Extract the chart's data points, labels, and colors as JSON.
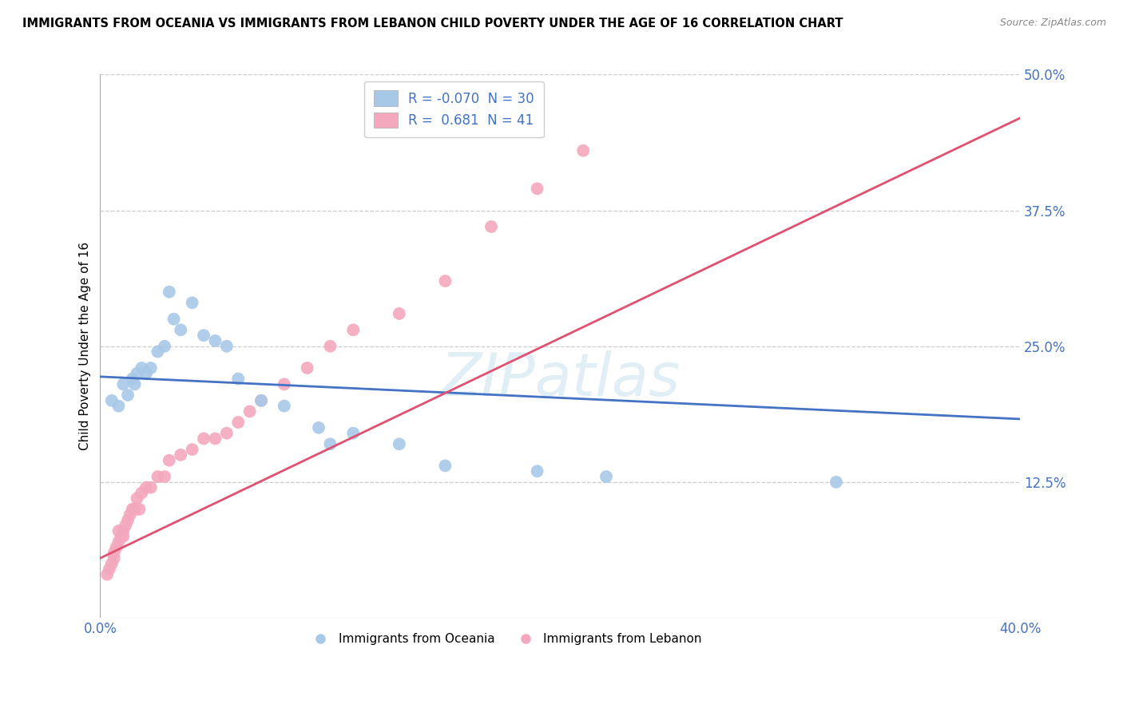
{
  "title": "IMMIGRANTS FROM OCEANIA VS IMMIGRANTS FROM LEBANON CHILD POVERTY UNDER THE AGE OF 16 CORRELATION CHART",
  "source": "Source: ZipAtlas.com",
  "ylabel": "Child Poverty Under the Age of 16",
  "xlim": [
    0.0,
    0.4
  ],
  "ylim": [
    0.0,
    0.5
  ],
  "xticks": [
    0.0,
    0.1,
    0.2,
    0.3,
    0.4
  ],
  "yticks": [
    0.0,
    0.125,
    0.25,
    0.375,
    0.5
  ],
  "oceania_R": "-0.070",
  "oceania_N": "30",
  "lebanon_R": "0.681",
  "lebanon_N": "41",
  "oceania_color": "#a8c8e8",
  "lebanon_color": "#f4a8be",
  "oceania_line_color": "#4472c4",
  "lebanon_line_color": "#e05070",
  "watermark_text": "ZIPatlas",
  "oceania_x": [
    0.005,
    0.008,
    0.01,
    0.012,
    0.014,
    0.015,
    0.016,
    0.018,
    0.02,
    0.022,
    0.025,
    0.028,
    0.03,
    0.032,
    0.035,
    0.04,
    0.045,
    0.05,
    0.055,
    0.06,
    0.07,
    0.08,
    0.095,
    0.1,
    0.11,
    0.13,
    0.15,
    0.19,
    0.22,
    0.32
  ],
  "oceania_y": [
    0.2,
    0.195,
    0.215,
    0.205,
    0.22,
    0.215,
    0.225,
    0.23,
    0.225,
    0.23,
    0.245,
    0.25,
    0.3,
    0.275,
    0.265,
    0.29,
    0.26,
    0.255,
    0.25,
    0.22,
    0.2,
    0.195,
    0.175,
    0.16,
    0.17,
    0.16,
    0.14,
    0.135,
    0.13,
    0.125
  ],
  "lebanon_x": [
    0.003,
    0.004,
    0.005,
    0.006,
    0.006,
    0.007,
    0.008,
    0.008,
    0.009,
    0.01,
    0.01,
    0.011,
    0.012,
    0.013,
    0.014,
    0.015,
    0.016,
    0.017,
    0.018,
    0.02,
    0.022,
    0.025,
    0.028,
    0.03,
    0.035,
    0.04,
    0.045,
    0.05,
    0.055,
    0.06,
    0.065,
    0.07,
    0.08,
    0.09,
    0.1,
    0.11,
    0.13,
    0.15,
    0.17,
    0.19,
    0.21
  ],
  "lebanon_y": [
    0.04,
    0.045,
    0.05,
    0.055,
    0.06,
    0.065,
    0.07,
    0.08,
    0.075,
    0.075,
    0.08,
    0.085,
    0.09,
    0.095,
    0.1,
    0.1,
    0.11,
    0.1,
    0.115,
    0.12,
    0.12,
    0.13,
    0.13,
    0.145,
    0.15,
    0.155,
    0.165,
    0.165,
    0.17,
    0.18,
    0.19,
    0.2,
    0.215,
    0.23,
    0.25,
    0.265,
    0.28,
    0.31,
    0.36,
    0.395,
    0.43
  ],
  "oceania_line_x": [
    0.0,
    0.4
  ],
  "oceania_line_y": [
    0.222,
    0.183
  ],
  "lebanon_line_x": [
    0.0,
    0.4
  ],
  "lebanon_line_y": [
    0.055,
    0.46
  ]
}
